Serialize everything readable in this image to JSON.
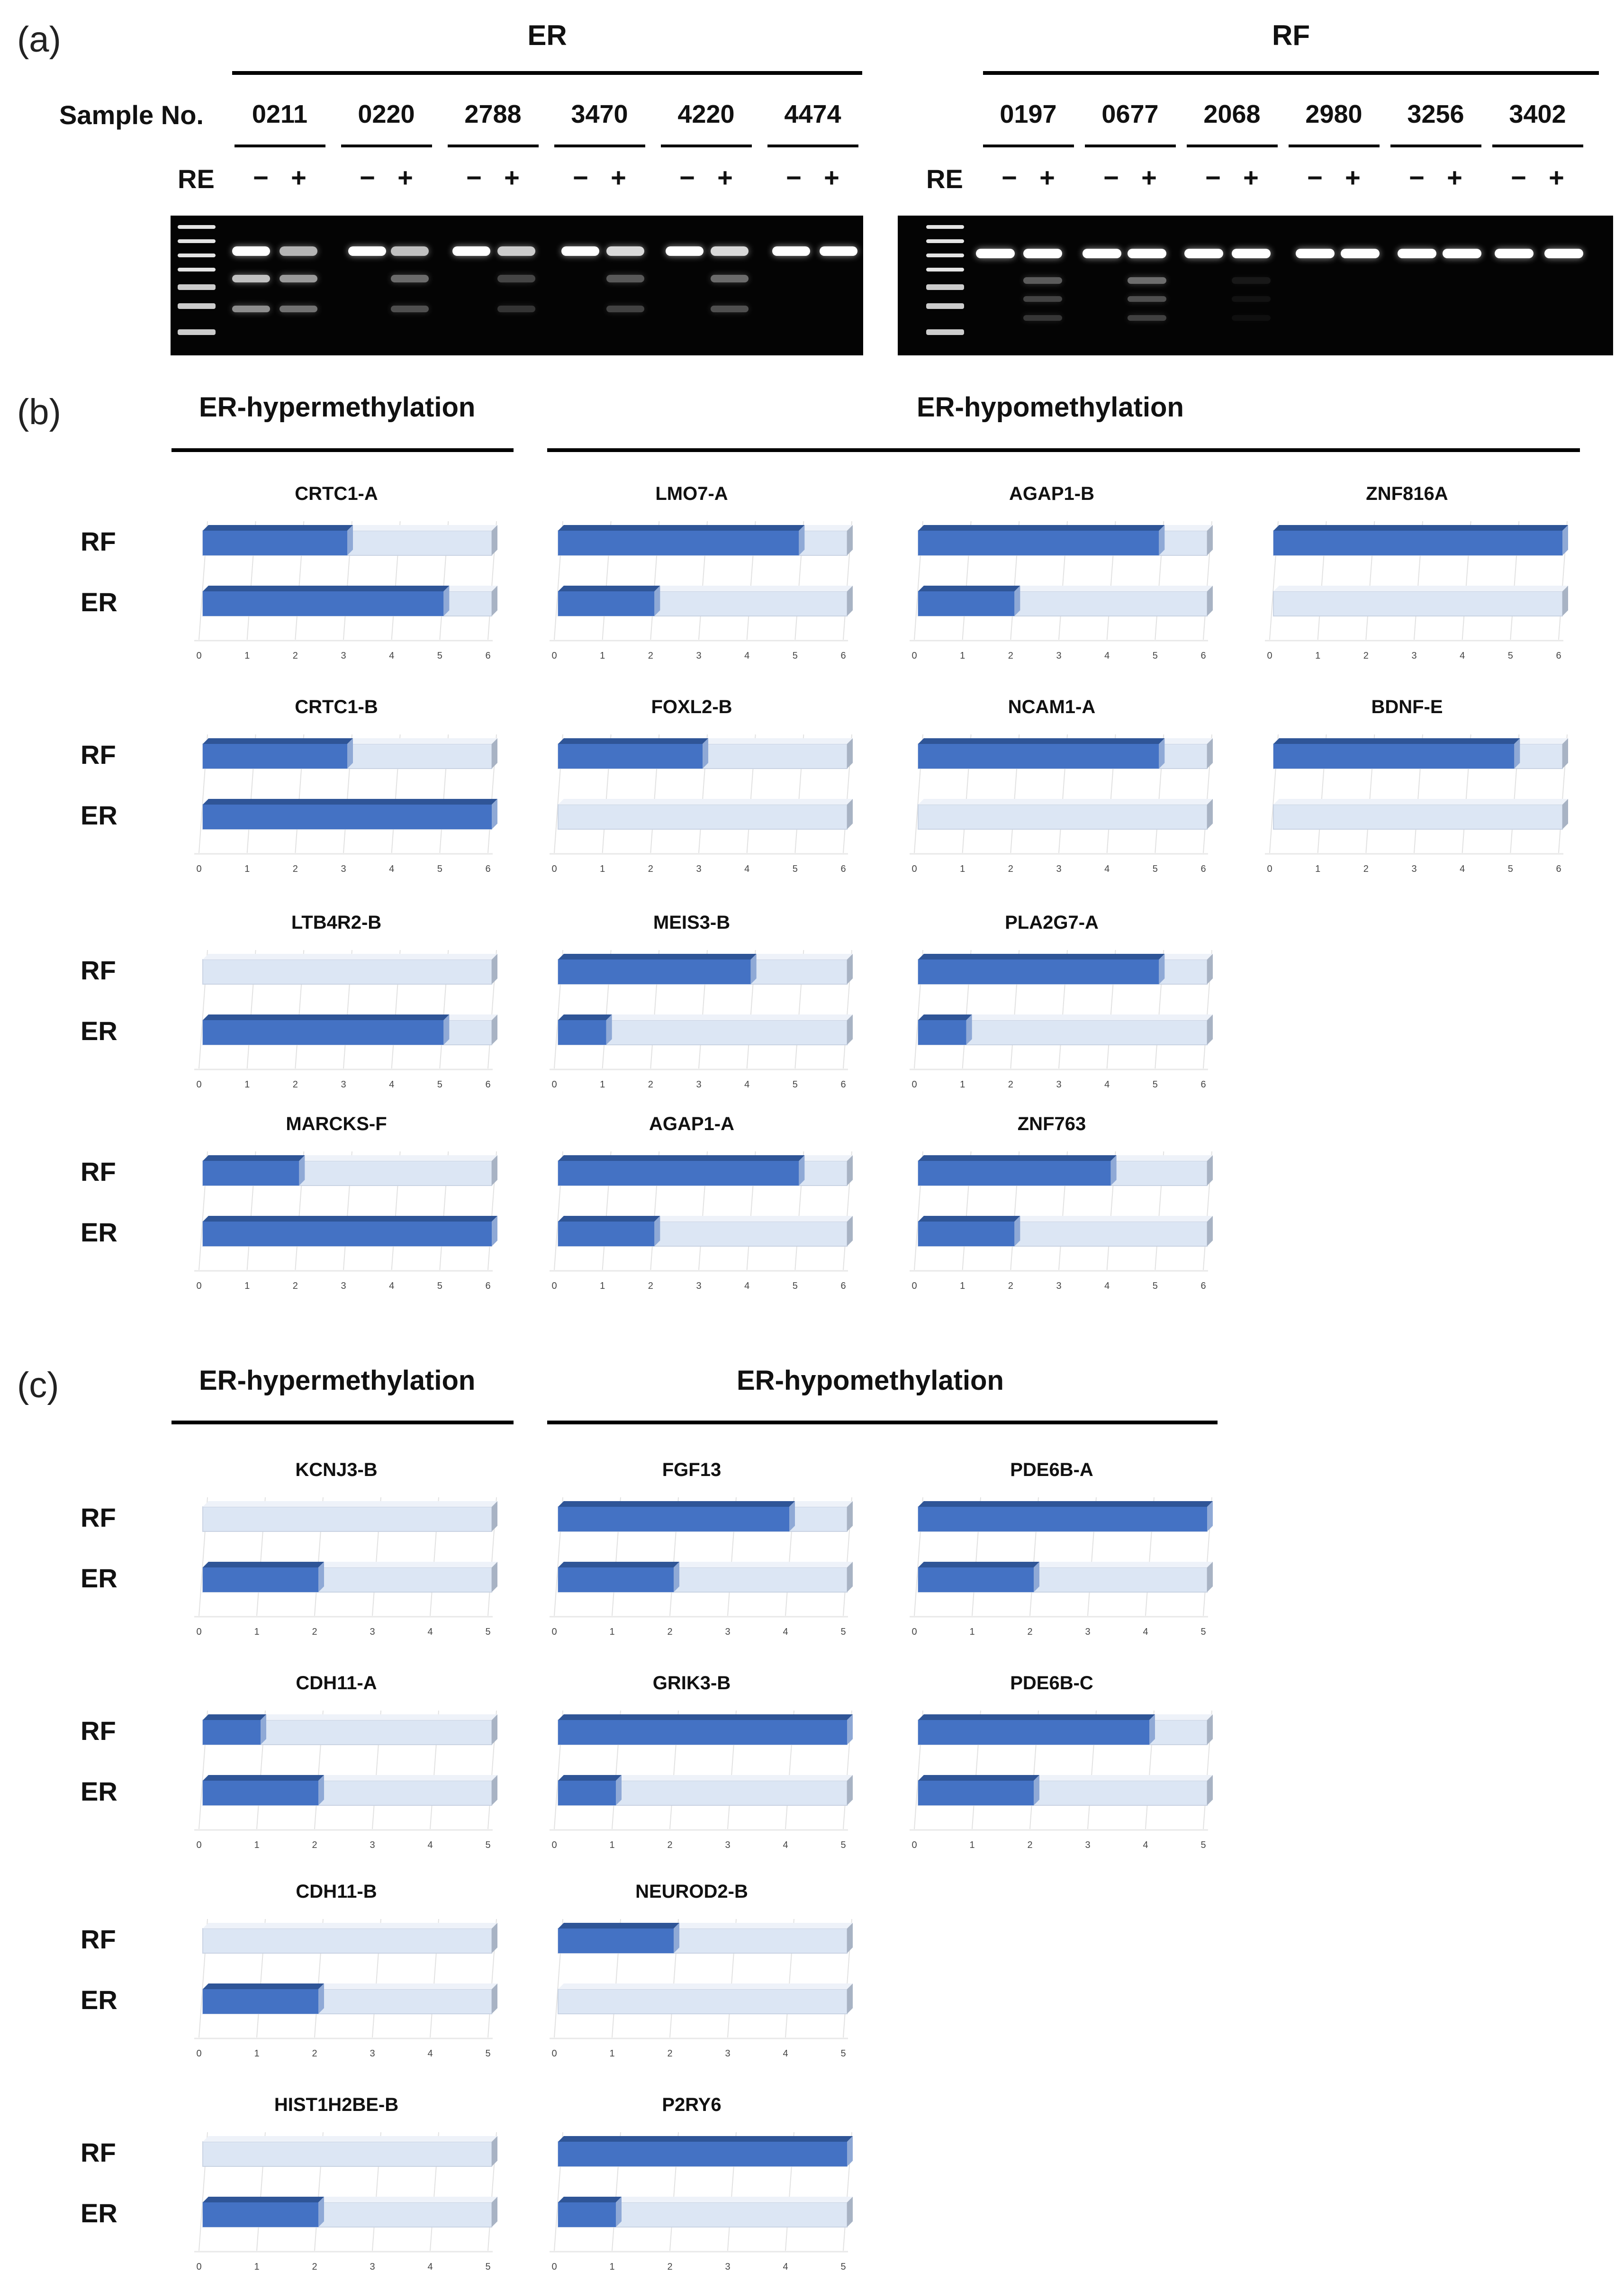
{
  "figure": {
    "panel_a": {
      "label": "(a)",
      "sample_label": "Sample No.",
      "re_label": "RE",
      "minus": "−",
      "plus": "+",
      "groups": [
        {
          "title": "ER",
          "samples": [
            "0211",
            "0220",
            "2788",
            "3470",
            "4220",
            "4474"
          ]
        },
        {
          "title": "RF",
          "samples": [
            "0197",
            "0677",
            "2068",
            "2980",
            "3256",
            "3402"
          ]
        }
      ]
    },
    "panel_b": {
      "label": "(b)",
      "hyper_title": "ER-hypermethylation",
      "hypo_title": "ER-hypomethylation",
      "row_labels": [
        "RF",
        "ER"
      ],
      "axis_ticks": [
        "0",
        "1",
        "2",
        "3",
        "4",
        "5",
        "6"
      ]
    },
    "panel_c": {
      "label": "(c)",
      "hyper_title": "ER-hypermethylation",
      "hypo_title": "ER-hypomethylation",
      "row_labels": [
        "RF",
        "ER"
      ],
      "axis_ticks": [
        "0",
        "1",
        "2",
        "3",
        "4",
        "5"
      ]
    },
    "colors": {
      "bar": "#4472C4",
      "bar_dark": "#2F5597",
      "track": "#DCE6F4",
      "track_edge": "#A8B3C4"
    }
  },
  "chart_data": [
    {
      "type": "bar",
      "orientation": "horizontal",
      "panel": "b",
      "group": "ER-hypermethylation",
      "title": "CRTC1-A",
      "categories": [
        "RF",
        "ER"
      ],
      "values": [
        3,
        5
      ],
      "xlim": [
        0,
        6
      ]
    },
    {
      "type": "bar",
      "orientation": "horizontal",
      "panel": "b",
      "group": "ER-hypermethylation",
      "title": "CRTC1-B",
      "categories": [
        "RF",
        "ER"
      ],
      "values": [
        3,
        6
      ],
      "xlim": [
        0,
        6
      ]
    },
    {
      "type": "bar",
      "orientation": "horizontal",
      "panel": "b",
      "group": "ER-hypermethylation",
      "title": "LTB4R2-B",
      "categories": [
        "RF",
        "ER"
      ],
      "values": [
        0,
        5
      ],
      "xlim": [
        0,
        6
      ]
    },
    {
      "type": "bar",
      "orientation": "horizontal",
      "panel": "b",
      "group": "ER-hypermethylation",
      "title": "MARCKS-F",
      "categories": [
        "RF",
        "ER"
      ],
      "values": [
        2,
        6
      ],
      "xlim": [
        0,
        6
      ]
    },
    {
      "type": "bar",
      "orientation": "horizontal",
      "panel": "b",
      "group": "ER-hypomethylation",
      "title": "LMO7-A",
      "categories": [
        "RF",
        "ER"
      ],
      "values": [
        5,
        2
      ],
      "xlim": [
        0,
        6
      ]
    },
    {
      "type": "bar",
      "orientation": "horizontal",
      "panel": "b",
      "group": "ER-hypomethylation",
      "title": "AGAP1-B",
      "categories": [
        "RF",
        "ER"
      ],
      "values": [
        5,
        2
      ],
      "xlim": [
        0,
        6
      ]
    },
    {
      "type": "bar",
      "orientation": "horizontal",
      "panel": "b",
      "group": "ER-hypomethylation",
      "title": "ZNF816A",
      "categories": [
        "RF",
        "ER"
      ],
      "values": [
        6,
        0
      ],
      "xlim": [
        0,
        6
      ]
    },
    {
      "type": "bar",
      "orientation": "horizontal",
      "panel": "b",
      "group": "ER-hypomethylation",
      "title": "FOXL2-B",
      "categories": [
        "RF",
        "ER"
      ],
      "values": [
        3,
        0
      ],
      "xlim": [
        0,
        6
      ]
    },
    {
      "type": "bar",
      "orientation": "horizontal",
      "panel": "b",
      "group": "ER-hypomethylation",
      "title": "NCAM1-A",
      "categories": [
        "RF",
        "ER"
      ],
      "values": [
        5,
        0
      ],
      "xlim": [
        0,
        6
      ]
    },
    {
      "type": "bar",
      "orientation": "horizontal",
      "panel": "b",
      "group": "ER-hypomethylation",
      "title": "BDNF-E",
      "categories": [
        "RF",
        "ER"
      ],
      "values": [
        5,
        0
      ],
      "xlim": [
        0,
        6
      ]
    },
    {
      "type": "bar",
      "orientation": "horizontal",
      "panel": "b",
      "group": "ER-hypomethylation",
      "title": "MEIS3-B",
      "categories": [
        "RF",
        "ER"
      ],
      "values": [
        4,
        1
      ],
      "xlim": [
        0,
        6
      ]
    },
    {
      "type": "bar",
      "orientation": "horizontal",
      "panel": "b",
      "group": "ER-hypomethylation",
      "title": "PLA2G7-A",
      "categories": [
        "RF",
        "ER"
      ],
      "values": [
        5,
        1
      ],
      "xlim": [
        0,
        6
      ]
    },
    {
      "type": "bar",
      "orientation": "horizontal",
      "panel": "b",
      "group": "ER-hypomethylation",
      "title": "AGAP1-A",
      "categories": [
        "RF",
        "ER"
      ],
      "values": [
        5,
        2
      ],
      "xlim": [
        0,
        6
      ]
    },
    {
      "type": "bar",
      "orientation": "horizontal",
      "panel": "b",
      "group": "ER-hypomethylation",
      "title": "ZNF763",
      "categories": [
        "RF",
        "ER"
      ],
      "values": [
        4,
        2
      ],
      "xlim": [
        0,
        6
      ]
    },
    {
      "type": "bar",
      "orientation": "horizontal",
      "panel": "c",
      "group": "ER-hypermethylation",
      "title": "KCNJ3-B",
      "categories": [
        "RF",
        "ER"
      ],
      "values": [
        0,
        2
      ],
      "xlim": [
        0,
        5
      ]
    },
    {
      "type": "bar",
      "orientation": "horizontal",
      "panel": "c",
      "group": "ER-hypermethylation",
      "title": "CDH11-A",
      "categories": [
        "RF",
        "ER"
      ],
      "values": [
        1,
        2
      ],
      "xlim": [
        0,
        5
      ]
    },
    {
      "type": "bar",
      "orientation": "horizontal",
      "panel": "c",
      "group": "ER-hypermethylation",
      "title": "CDH11-B",
      "categories": [
        "RF",
        "ER"
      ],
      "values": [
        0,
        2
      ],
      "xlim": [
        0,
        5
      ]
    },
    {
      "type": "bar",
      "orientation": "horizontal",
      "panel": "c",
      "group": "ER-hypermethylation",
      "title": "HIST1H2BE-B",
      "categories": [
        "RF",
        "ER"
      ],
      "values": [
        0,
        2
      ],
      "xlim": [
        0,
        5
      ]
    },
    {
      "type": "bar",
      "orientation": "horizontal",
      "panel": "c",
      "group": "ER-hypomethylation",
      "title": "FGF13",
      "categories": [
        "RF",
        "ER"
      ],
      "values": [
        4,
        2
      ],
      "xlim": [
        0,
        5
      ]
    },
    {
      "type": "bar",
      "orientation": "horizontal",
      "panel": "c",
      "group": "ER-hypomethylation",
      "title": "PDE6B-A",
      "categories": [
        "RF",
        "ER"
      ],
      "values": [
        5,
        2
      ],
      "xlim": [
        0,
        5
      ]
    },
    {
      "type": "bar",
      "orientation": "horizontal",
      "panel": "c",
      "group": "ER-hypomethylation",
      "title": "GRIK3-B",
      "categories": [
        "RF",
        "ER"
      ],
      "values": [
        5,
        1
      ],
      "xlim": [
        0,
        5
      ]
    },
    {
      "type": "bar",
      "orientation": "horizontal",
      "panel": "c",
      "group": "ER-hypomethylation",
      "title": "PDE6B-C",
      "categories": [
        "RF",
        "ER"
      ],
      "values": [
        4,
        2
      ],
      "xlim": [
        0,
        5
      ]
    },
    {
      "type": "bar",
      "orientation": "horizontal",
      "panel": "c",
      "group": "ER-hypomethylation",
      "title": "NEUROD2-B",
      "categories": [
        "RF",
        "ER"
      ],
      "values": [
        2,
        0
      ],
      "xlim": [
        0,
        5
      ]
    },
    {
      "type": "bar",
      "orientation": "horizontal",
      "panel": "c",
      "group": "ER-hypomethylation",
      "title": "P2RY6",
      "categories": [
        "RF",
        "ER"
      ],
      "values": [
        5,
        1
      ],
      "xlim": [
        0,
        5
      ]
    }
  ]
}
